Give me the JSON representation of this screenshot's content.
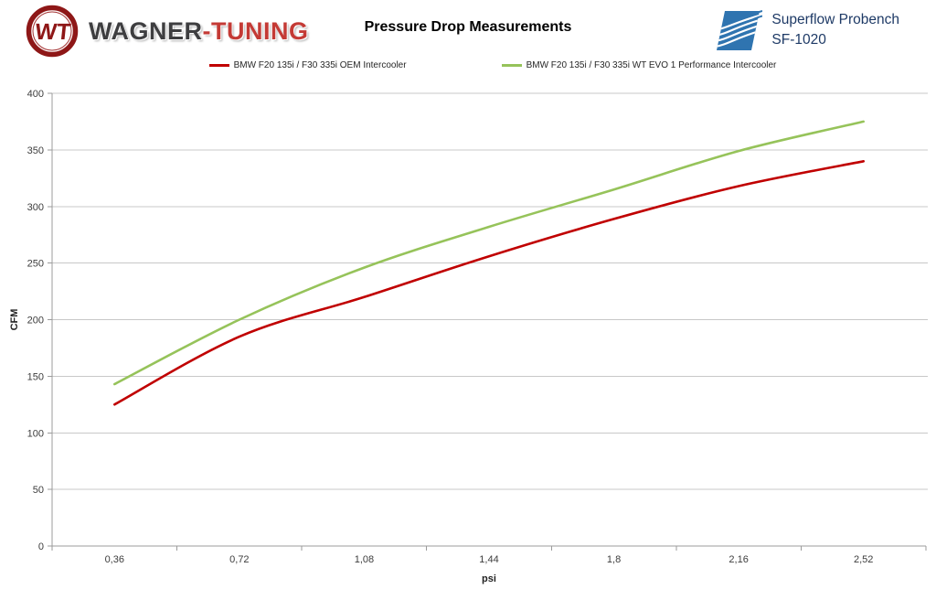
{
  "header": {
    "brand": {
      "monogram": "WT",
      "dark": "WAGNER",
      "red": "-TUNING"
    },
    "title": "Pressure Drop Measurements",
    "bench": {
      "line1": "Superflow Probench",
      "line2": "SF-1020"
    }
  },
  "colors": {
    "series_oem_red": "#C00000",
    "series_evo_green": "#96C35A",
    "brand_dark": "#3E3E40",
    "brand_red": "#C43A35",
    "superflow_blue": "#2F74B0",
    "superflow_text": "#1E3A66",
    "gridline": "#C8C8C8",
    "axis": "#9B9B9B"
  },
  "chart_data": {
    "type": "line",
    "title": "Pressure Drop Measurements",
    "xlabel": "psi",
    "ylabel": "CFM",
    "categories": [
      "0,36",
      "0,72",
      "1,08",
      "1,44",
      "1,8",
      "2,16",
      "2,52"
    ],
    "y_ticks": [
      0,
      50,
      100,
      150,
      200,
      250,
      300,
      350,
      400
    ],
    "ylim": [
      0,
      400
    ],
    "grid": "horizontal",
    "legend_position": "top",
    "smoothed": true,
    "series": [
      {
        "name": "BMW F20 135i / F30 335i OEM Intercooler",
        "color": "#C00000",
        "values": [
          125,
          185,
          220,
          256,
          289,
          318,
          340
        ]
      },
      {
        "name": "BMW F20 135i / F30 335i WT EVO 1 Performance Intercooler",
        "color": "#96C35A",
        "values": [
          143,
          200,
          246,
          282,
          315,
          349,
          375
        ]
      }
    ]
  }
}
